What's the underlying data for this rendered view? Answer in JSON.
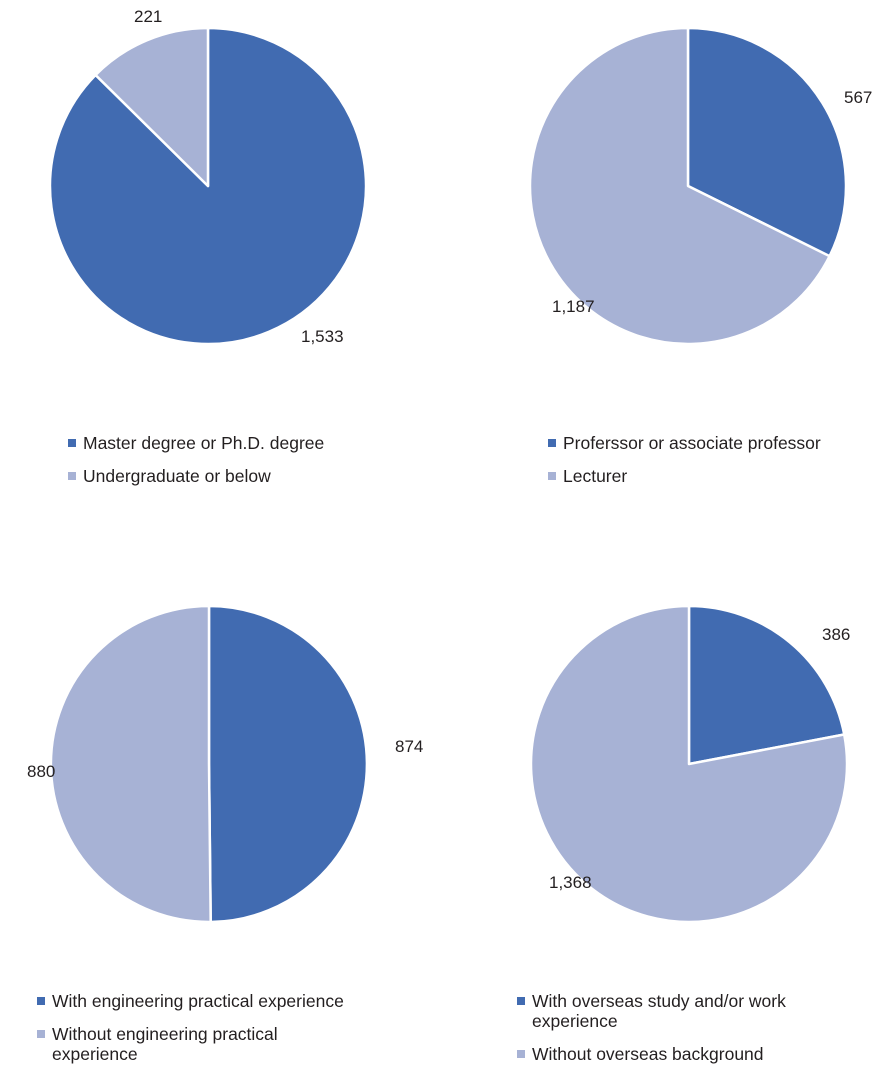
{
  "colors": {
    "primary": "#416bb1",
    "secondary": "#a7b2d5",
    "separator": "#ffffff",
    "text": "#231f20"
  },
  "chart_data": [
    {
      "type": "pie",
      "slices": [
        {
          "label": "Master degree or Ph.D. degree",
          "value": 1533,
          "display": "1,533",
          "color": "#416bb1"
        },
        {
          "label": "Undergraduate or below",
          "value": 221,
          "display": "221",
          "color": "#a7b2d5"
        }
      ],
      "legend": [
        "Master degree or Ph.D. degree",
        "Undergraduate or below"
      ],
      "legend_position": "bottom"
    },
    {
      "type": "pie",
      "slices": [
        {
          "label": "Proferssor or associate professor",
          "value": 567,
          "display": "567",
          "color": "#416bb1"
        },
        {
          "label": "Lecturer",
          "value": 1187,
          "display": "1,187",
          "color": "#a7b2d5"
        }
      ],
      "legend": [
        "Proferssor or associate professor",
        "Lecturer"
      ],
      "legend_position": "bottom"
    },
    {
      "type": "pie",
      "slices": [
        {
          "label": "With engineering practical experience",
          "value": 874,
          "display": "874",
          "color": "#416bb1"
        },
        {
          "label": "Without engineering practical experience",
          "value": 880,
          "display": "880",
          "color": "#a7b2d5"
        }
      ],
      "legend": [
        "With engineering practical experience",
        "Without engineering practical experience"
      ],
      "legend_position": "bottom"
    },
    {
      "type": "pie",
      "slices": [
        {
          "label": "With overseas study and/or work experience",
          "value": 386,
          "display": "386",
          "color": "#416bb1"
        },
        {
          "label": "Without overseas background",
          "value": 1368,
          "display": "1,368",
          "color": "#a7b2d5"
        }
      ],
      "legend": [
        "With overseas study and/or work experience",
        "Without overseas background"
      ],
      "legend_position": "bottom"
    }
  ]
}
